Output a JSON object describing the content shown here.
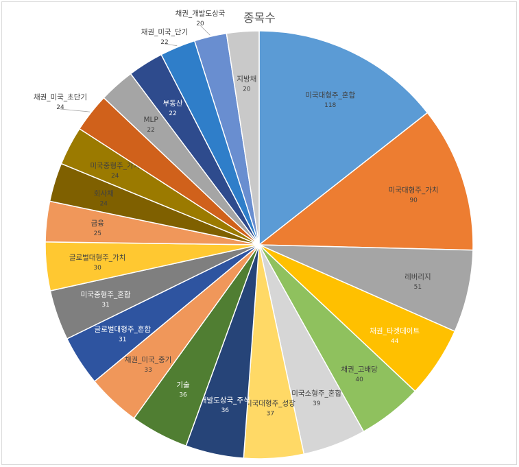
{
  "chart_data": {
    "type": "pie",
    "title": "종목수",
    "colors": {
      "dark_text": "#404040",
      "light_text": "#ffffff",
      "slice_border": "#ffffff"
    },
    "categories": [
      "미국대형주_혼합",
      "미국대형주_가치",
      "레버리지",
      "채권_타겟데이트",
      "채권_고배당",
      "미국소형주_혼합",
      "미국대형주_성장",
      "개발도상국_주식",
      "기술",
      "채권_미국_중기",
      "글로벌대형주_혼합",
      "미국중형주_혼합",
      "글로벌대형주_가치",
      "금융",
      "회사채",
      "미국중형주_가치",
      "채권_미국_초단기",
      "MLP",
      "부동산",
      "채권_미국_단기",
      "채권_개발도상국",
      "지방채"
    ],
    "values": [
      118,
      90,
      51,
      44,
      40,
      39,
      37,
      36,
      36,
      33,
      31,
      31,
      30,
      25,
      24,
      24,
      24,
      22,
      22,
      22,
      20,
      20
    ],
    "slice_colors": [
      "#5b9bd5",
      "#ed7d31",
      "#a5a5a5",
      "#ffc000",
      "#8fc15e",
      "#d6d6d6",
      "#ffd966",
      "#264478",
      "#507e32",
      "#f0975a",
      "#2e54a0",
      "#7f7f7f",
      "#ffc831",
      "#f0975a",
      "#7f6000",
      "#9b7a00",
      "#d0611b",
      "#a5a5a5",
      "#2e4b8d",
      "#2f7ec9",
      "#698ed0",
      "#c9c9c9"
    ],
    "label_inside": [
      true,
      true,
      true,
      true,
      true,
      true,
      true,
      true,
      true,
      true,
      true,
      true,
      true,
      true,
      true,
      true,
      false,
      true,
      true,
      false,
      false,
      true
    ],
    "label_light": [
      false,
      false,
      false,
      true,
      false,
      false,
      false,
      true,
      true,
      false,
      true,
      true,
      false,
      false,
      false,
      false,
      false,
      false,
      true,
      false,
      false,
      false
    ]
  }
}
